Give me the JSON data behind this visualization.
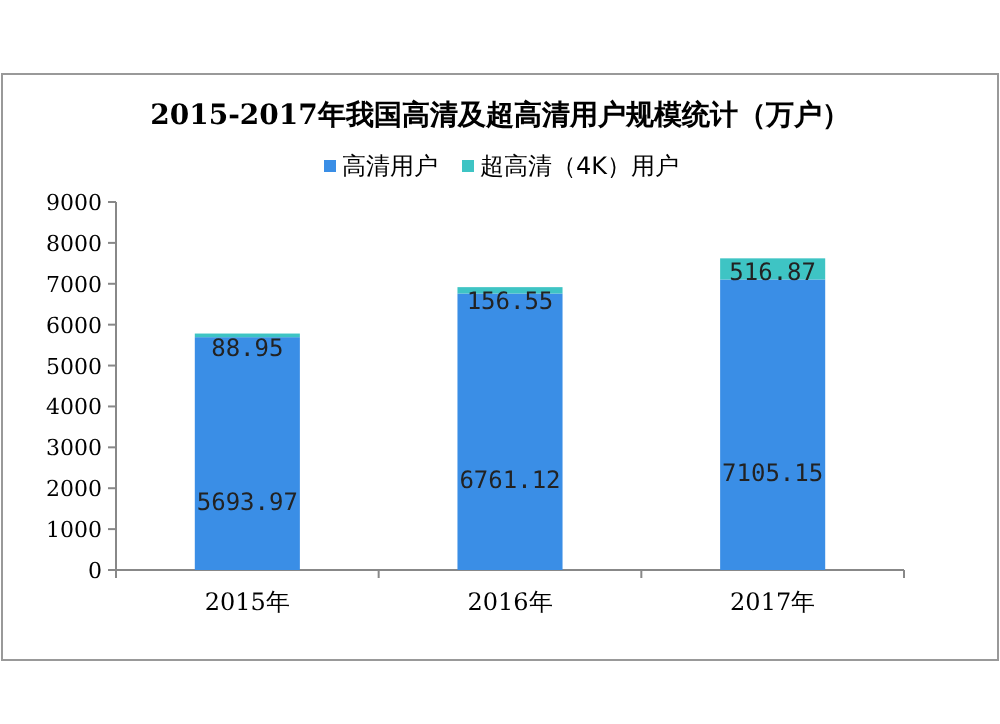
{
  "chart_data": {
    "type": "bar",
    "stacked": true,
    "title": "2015-2017年我国高清及超高清用户规模统计（万户）",
    "categories": [
      "2015年",
      "2016年",
      "2017年"
    ],
    "series": [
      {
        "name": "高清用户",
        "color": "#3a8ee6",
        "values": [
          5693.97,
          6761.12,
          7105.15
        ]
      },
      {
        "name": "超高清（4K）用户",
        "color": "#3ec4c4",
        "values": [
          88.95,
          156.55,
          516.87
        ]
      }
    ],
    "ylim": [
      0,
      9000
    ],
    "yticks": [
      0,
      1000,
      2000,
      3000,
      4000,
      5000,
      6000,
      7000,
      8000,
      9000
    ],
    "data_labels": true,
    "legend": "top",
    "grid": false
  }
}
